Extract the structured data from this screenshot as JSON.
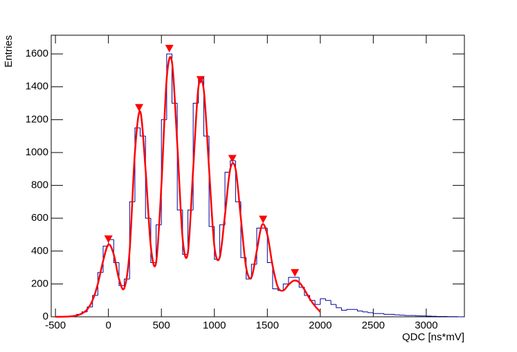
{
  "chart_data": {
    "type": "histogram",
    "x_label": "QDC [ns*mV]",
    "y_label": "Entries",
    "xlim": [
      -540,
      3360
    ],
    "ylim": [
      0,
      1714
    ],
    "xticks": [
      -500,
      0,
      500,
      1000,
      1500,
      2000,
      2500,
      3000
    ],
    "yticks": [
      0,
      200,
      400,
      600,
      800,
      1000,
      1200,
      1400,
      1600
    ],
    "color": "#000099",
    "bins": [
      -500,
      -450,
      -400,
      -350,
      -300,
      -250,
      -200,
      -150,
      -100,
      -50,
      0,
      50,
      100,
      150,
      200,
      250,
      300,
      350,
      400,
      450,
      500,
      550,
      600,
      650,
      700,
      750,
      800,
      850,
      900,
      950,
      1000,
      1050,
      1100,
      1150,
      1200,
      1250,
      1300,
      1350,
      1400,
      1450,
      1500,
      1550,
      1600,
      1650,
      1700,
      1750,
      1800,
      1850,
      1900,
      1950,
      2000,
      2050,
      2100,
      2150,
      2200,
      2250,
      2300,
      2350,
      2400,
      2450,
      2500,
      2550,
      2600,
      2650,
      2700,
      2750,
      2800,
      2850,
      2900,
      2950,
      3000,
      3050,
      3100,
      3150,
      3200,
      3250,
      3300,
      3350
    ],
    "counts": [
      0,
      0,
      2,
      5,
      15,
      30,
      60,
      130,
      270,
      430,
      470,
      330,
      190,
      230,
      700,
      1150,
      1100,
      600,
      330,
      560,
      1200,
      1600,
      1300,
      650,
      380,
      650,
      1300,
      1460,
      1100,
      550,
      350,
      560,
      880,
      950,
      700,
      360,
      230,
      320,
      540,
      540,
      330,
      170,
      160,
      200,
      240,
      240,
      180,
      130,
      100,
      75,
      110,
      100,
      75,
      55,
      40,
      45,
      45,
      35,
      30,
      25,
      20,
      20,
      15,
      15,
      12,
      10,
      8,
      8,
      6,
      5,
      4,
      3,
      2,
      2,
      1,
      1,
      0
    ],
    "fit": {
      "color": "#ff0000",
      "x": [
        -500,
        -450,
        -400,
        -350,
        -300,
        -250,
        -200,
        -150,
        -100,
        -50,
        0,
        50,
        100,
        150,
        200,
        250,
        300,
        350,
        400,
        450,
        500,
        550,
        600,
        650,
        700,
        750,
        800,
        850,
        900,
        950,
        1000,
        1050,
        1100,
        1150,
        1200,
        1250,
        1300,
        1350,
        1400,
        1450,
        1500,
        1550,
        1600,
        1650,
        1700,
        1750,
        1800,
        1850,
        1900,
        1950,
        2000
      ],
      "y": [
        0,
        0,
        1,
        3,
        8,
        20,
        45,
        100,
        200,
        340,
        440,
        380,
        230,
        175,
        400,
        1000,
        1250,
        900,
        430,
        330,
        800,
        1450,
        1550,
        1050,
        480,
        390,
        900,
        1400,
        1380,
        900,
        430,
        360,
        620,
        900,
        900,
        600,
        300,
        240,
        400,
        560,
        500,
        310,
        180,
        160,
        195,
        220,
        210,
        165,
        110,
        65,
        30
      ]
    },
    "peaks": {
      "color": "#ff0000",
      "x": [
        0,
        290,
        575,
        870,
        1170,
        1460,
        1760
      ],
      "y": [
        470,
        1270,
        1630,
        1440,
        960,
        590,
        265
      ]
    }
  }
}
